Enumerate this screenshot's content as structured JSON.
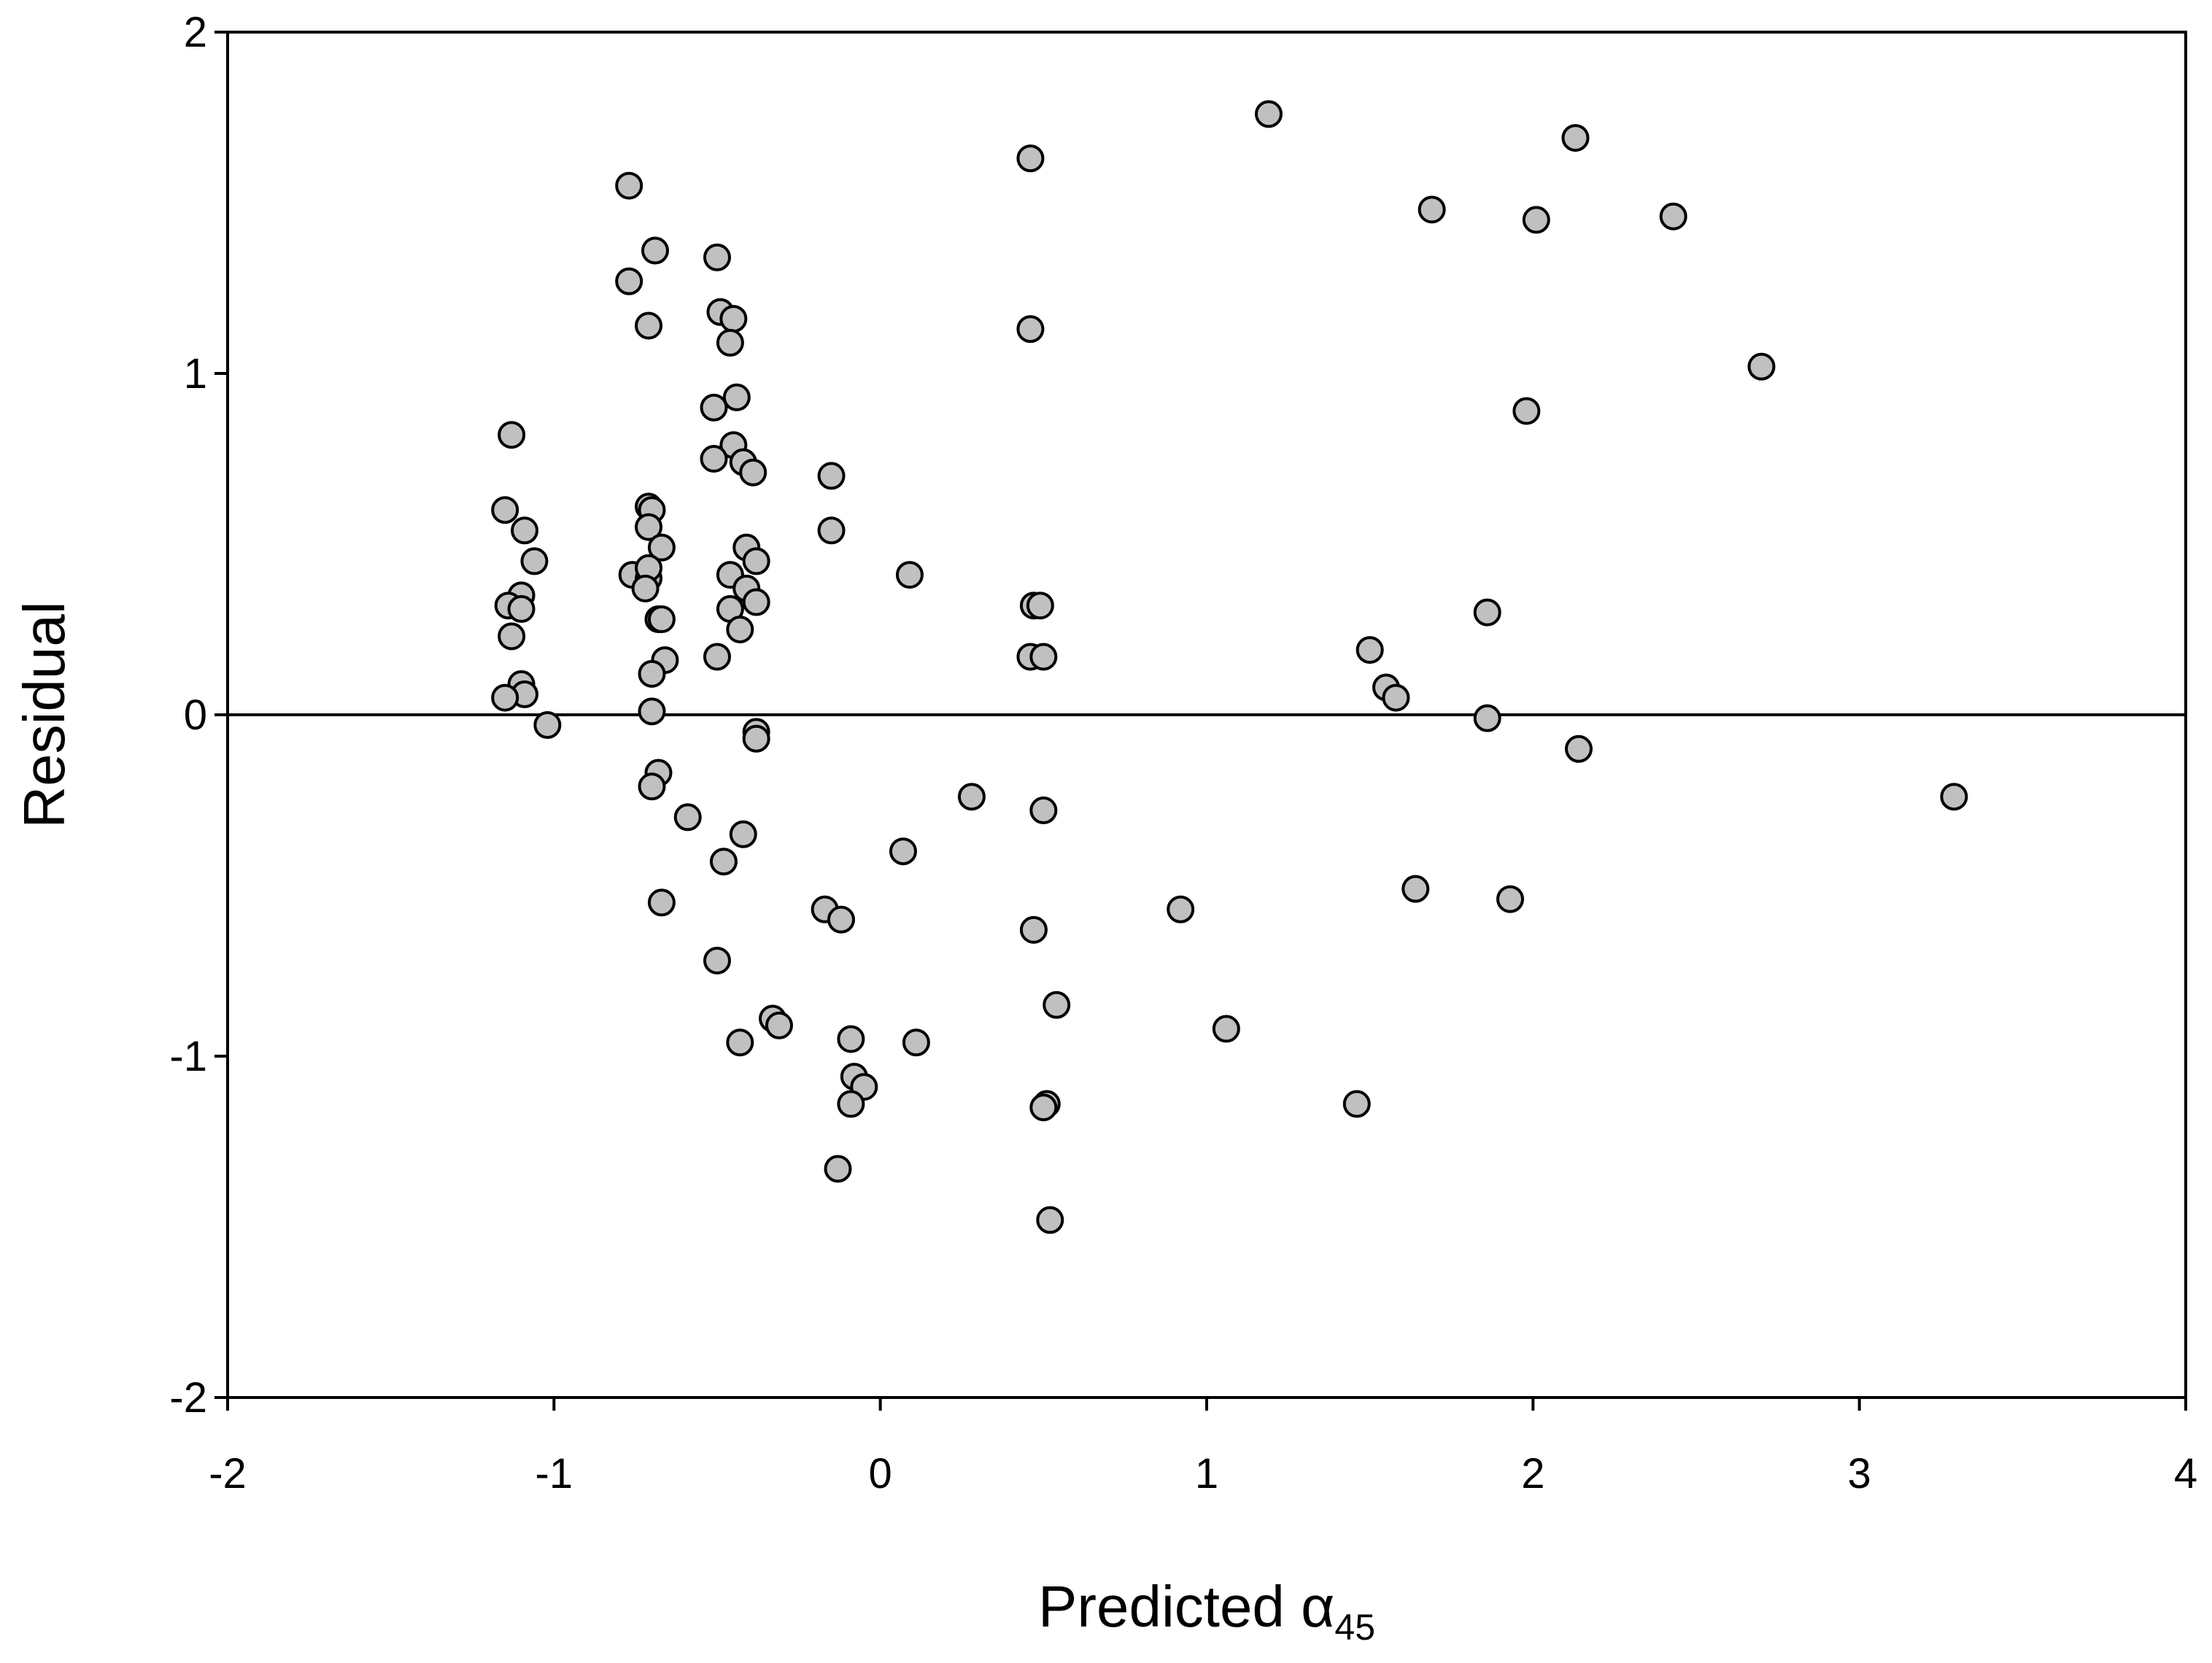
{
  "chart_data": {
    "type": "scatter",
    "title": "",
    "xlabel": "Predicted α",
    "xlabel_subscript": "45",
    "ylabel": "Residual",
    "xlim": [
      -2,
      4
    ],
    "ylim": [
      -2,
      2
    ],
    "x_ticks": [
      "-2",
      "-1",
      "0",
      "1",
      "2",
      "3",
      "4"
    ],
    "y_ticks": [
      "-2",
      "-1",
      "0",
      "1",
      "2"
    ],
    "grid": false,
    "reference_line_y": 0,
    "marker_fill": "#c0c0c0",
    "marker_edge": "#000000",
    "points": [
      [
        -1.13,
        0.82
      ],
      [
        -1.15,
        0.6
      ],
      [
        -1.09,
        0.54
      ],
      [
        -1.06,
        0.45
      ],
      [
        -1.1,
        0.35
      ],
      [
        -1.14,
        0.32
      ],
      [
        -1.1,
        0.31
      ],
      [
        -1.13,
        0.23
      ],
      [
        -1.1,
        0.09
      ],
      [
        -1.09,
        0.06
      ],
      [
        -1.15,
        0.05
      ],
      [
        -1.02,
        -0.03
      ],
      [
        -0.77,
        1.55
      ],
      [
        -0.77,
        1.27
      ],
      [
        -0.71,
        1.14
      ],
      [
        -0.69,
        1.36
      ],
      [
        -0.71,
        0.61
      ],
      [
        -0.7,
        0.6
      ],
      [
        -0.71,
        0.55
      ],
      [
        -0.67,
        0.49
      ],
      [
        -0.76,
        0.41
      ],
      [
        -0.71,
        0.4
      ],
      [
        -0.71,
        0.43
      ],
      [
        -0.72,
        0.37
      ],
      [
        -0.68,
        0.28
      ],
      [
        -0.67,
        0.28
      ],
      [
        -0.66,
        0.16
      ],
      [
        -0.7,
        0.12
      ],
      [
        -0.7,
        0.01
      ],
      [
        -0.68,
        -0.17
      ],
      [
        -0.7,
        -0.21
      ],
      [
        -0.59,
        -0.3
      ],
      [
        -0.67,
        -0.55
      ],
      [
        -0.5,
        1.34
      ],
      [
        -0.49,
        1.18
      ],
      [
        -0.45,
        1.16
      ],
      [
        -0.46,
        1.09
      ],
      [
        -0.44,
        0.93
      ],
      [
        -0.51,
        0.9
      ],
      [
        -0.45,
        0.79
      ],
      [
        -0.51,
        0.75
      ],
      [
        -0.42,
        0.74
      ],
      [
        -0.39,
        0.71
      ],
      [
        -0.41,
        0.49
      ],
      [
        -0.38,
        0.45
      ],
      [
        -0.46,
        0.41
      ],
      [
        -0.41,
        0.37
      ],
      [
        -0.46,
        0.31
      ],
      [
        -0.38,
        0.33
      ],
      [
        -0.43,
        0.25
      ],
      [
        -0.5,
        0.17
      ],
      [
        -0.38,
        -0.05
      ],
      [
        -0.38,
        -0.07
      ],
      [
        -0.42,
        -0.35
      ],
      [
        -0.48,
        -0.43
      ],
      [
        -0.5,
        -0.72
      ],
      [
        -0.43,
        -0.96
      ],
      [
        -0.33,
        -0.89
      ],
      [
        -0.31,
        -0.91
      ],
      [
        -0.15,
        0.7
      ],
      [
        -0.15,
        0.54
      ],
      [
        -0.17,
        -0.57
      ],
      [
        -0.12,
        -0.6
      ],
      [
        -0.09,
        -0.95
      ],
      [
        -0.08,
        -1.06
      ],
      [
        -0.05,
        -1.09
      ],
      [
        -0.09,
        -1.14
      ],
      [
        -0.13,
        -1.33
      ],
      [
        0.09,
        0.41
      ],
      [
        0.07,
        -0.4
      ],
      [
        0.11,
        -0.96
      ],
      [
        0.28,
        -0.24
      ],
      [
        0.46,
        1.63
      ],
      [
        0.46,
        1.13
      ],
      [
        0.47,
        0.32
      ],
      [
        0.49,
        0.32
      ],
      [
        0.46,
        0.17
      ],
      [
        0.5,
        0.17
      ],
      [
        0.5,
        -0.28
      ],
      [
        0.47,
        -0.63
      ],
      [
        0.54,
        -0.85
      ],
      [
        0.51,
        -1.14
      ],
      [
        0.5,
        -1.15
      ],
      [
        0.52,
        -1.48
      ],
      [
        0.92,
        -0.57
      ],
      [
        1.06,
        -0.92
      ],
      [
        1.19,
        1.76
      ],
      [
        1.5,
        0.19
      ],
      [
        1.55,
        0.08
      ],
      [
        1.58,
        0.05
      ],
      [
        1.64,
        -0.51
      ],
      [
        1.46,
        -1.14
      ],
      [
        1.69,
        1.48
      ],
      [
        1.86,
        0.3
      ],
      [
        1.86,
        -0.01
      ],
      [
        1.93,
        -0.54
      ],
      [
        1.98,
        0.89
      ],
      [
        2.01,
        1.45
      ],
      [
        2.13,
        1.69
      ],
      [
        2.14,
        -0.1
      ],
      [
        2.43,
        1.46
      ],
      [
        2.7,
        1.02
      ],
      [
        3.29,
        -0.24
      ]
    ]
  }
}
